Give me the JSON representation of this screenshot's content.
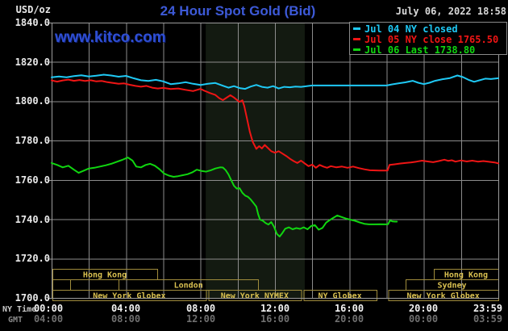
{
  "header": {
    "units": "USD/oz",
    "title": "24 Hour Spot Gold (Bid)",
    "datetime": "July 06, 2022 18:58",
    "watermark": "www.kitco.com"
  },
  "legend": [
    {
      "label": "Jul 04 NY closed",
      "color": "#1fc9f5"
    },
    {
      "label": "Jul 05 NY close 1765.50",
      "color": "#ef1515"
    },
    {
      "label": "Jul 06 Last 1738.80",
      "color": "#10d610"
    }
  ],
  "axis": {
    "ny_time_label": "NY Time",
    "gmt_label": "GMT",
    "ny_times": [
      "00:00",
      "04:00",
      "08:00",
      "12:00",
      "16:00",
      "20:00",
      "23:59"
    ],
    "gmt_times": [
      "04:00",
      "08:00",
      "12:00",
      "16:00",
      "20:00",
      "00:00",
      "03:59"
    ],
    "y_labels": [
      "1840.0",
      "1820.0",
      "1800.0",
      "1780.0",
      "1760.0",
      "1740.0",
      "1720.0",
      "1700.0"
    ]
  },
  "colors": {
    "background": "#000000",
    "grid": "#8c8c8c",
    "plot_border": "#9c9c9c",
    "session_text": "#d9c050",
    "session_border": "#a08c3c",
    "nymex_band": "#131a11",
    "title_blue": "#3d5ad8"
  },
  "chart_data": {
    "type": "line",
    "title": "24 Hour Spot Gold (Bid)",
    "xlabel": "NY Time",
    "ylabel": "USD/oz",
    "x_range_hours": [
      0,
      24
    ],
    "ylim": [
      1700,
      1840
    ],
    "y_tick_step": 20,
    "x_gridline_step_hours": 2,
    "legend_position": "top-right",
    "nymex_band_hours": [
      8.28,
      13.6
    ],
    "sessions": [
      {
        "row": 0,
        "label": "Hong Kong",
        "start": 0.05,
        "end": 5.67
      },
      {
        "row": 0,
        "label": "Hong Kong",
        "start": 20.53,
        "end": 24
      },
      {
        "row": 1,
        "label": "",
        "start": 0.05,
        "end": 1.0
      },
      {
        "row": 1,
        "label": "",
        "start": 1.0,
        "end": 3.6
      },
      {
        "row": 1,
        "label": "London",
        "start": 3.6,
        "end": 11.1
      },
      {
        "row": 1,
        "label": "Sydney",
        "start": 19.02,
        "end": 24
      },
      {
        "row": 2,
        "label": "New York Globex",
        "start": 0.05,
        "end": 8.3
      },
      {
        "row": 2,
        "label": "New York NYMEX",
        "start": 8.42,
        "end": 13.4
      },
      {
        "row": 2,
        "label": "NY Globex",
        "start": 13.53,
        "end": 17.45
      },
      {
        "row": 2,
        "label": "New York Globex",
        "start": 18.08,
        "end": 24
      }
    ],
    "series": [
      {
        "name": "Jul 04 NY closed",
        "color": "#1fc9f5",
        "points": [
          [
            0,
            1812.2
          ],
          [
            0.4,
            1812.6
          ],
          [
            0.8,
            1812.2
          ],
          [
            1.2,
            1812.8
          ],
          [
            1.6,
            1813.2
          ],
          [
            2,
            1812.6
          ],
          [
            2.4,
            1813
          ],
          [
            2.8,
            1813.5
          ],
          [
            3.2,
            1813.1
          ],
          [
            3.6,
            1812.5
          ],
          [
            4,
            1812.9
          ],
          [
            4.4,
            1811.7
          ],
          [
            4.8,
            1810.7
          ],
          [
            5.2,
            1810.3
          ],
          [
            5.6,
            1810.9
          ],
          [
            6,
            1810.1
          ],
          [
            6.4,
            1808.7
          ],
          [
            6.8,
            1809.1
          ],
          [
            7.2,
            1809.7
          ],
          [
            7.6,
            1808.9
          ],
          [
            8,
            1808.3
          ],
          [
            8.4,
            1808.9
          ],
          [
            8.8,
            1809.3
          ],
          [
            9.2,
            1807.9
          ],
          [
            9.5,
            1806.9
          ],
          [
            9.8,
            1807.7
          ],
          [
            10.1,
            1806.7
          ],
          [
            10.4,
            1806.3
          ],
          [
            10.7,
            1807.5
          ],
          [
            11,
            1808.3
          ],
          [
            11.3,
            1807.3
          ],
          [
            11.6,
            1806.9
          ],
          [
            11.9,
            1807.7
          ],
          [
            12.2,
            1806.5
          ],
          [
            12.5,
            1807.3
          ],
          [
            12.8,
            1807.1
          ],
          [
            13.1,
            1807.5
          ],
          [
            13.4,
            1807.3
          ],
          [
            13.7,
            1807.7
          ],
          [
            14,
            1808
          ],
          [
            15,
            1808
          ],
          [
            16,
            1808
          ],
          [
            17,
            1808
          ],
          [
            18,
            1808
          ],
          [
            18.3,
            1808.6
          ],
          [
            18.7,
            1809.2
          ],
          [
            19,
            1809.6
          ],
          [
            19.4,
            1810.4
          ],
          [
            19.7,
            1809.4
          ],
          [
            20,
            1808.7
          ],
          [
            20.3,
            1809.4
          ],
          [
            20.6,
            1810.4
          ],
          [
            21,
            1811.2
          ],
          [
            21.4,
            1811.8
          ],
          [
            21.8,
            1813.1
          ],
          [
            22.1,
            1812.3
          ],
          [
            22.4,
            1810.9
          ],
          [
            22.7,
            1809.9
          ],
          [
            23,
            1810.7
          ],
          [
            23.3,
            1811.5
          ],
          [
            23.6,
            1811.3
          ],
          [
            24,
            1811.7
          ]
        ]
      },
      {
        "name": "Jul 05 NY close 1765.50",
        "color": "#ef1515",
        "points": [
          [
            0,
            1810.6
          ],
          [
            0.3,
            1810
          ],
          [
            0.6,
            1810.6
          ],
          [
            0.9,
            1811
          ],
          [
            1.2,
            1810.4
          ],
          [
            1.5,
            1810.8
          ],
          [
            1.8,
            1810.3
          ],
          [
            2.1,
            1810.7
          ],
          [
            2.4,
            1810.1
          ],
          [
            2.7,
            1810.3
          ],
          [
            3,
            1809.7
          ],
          [
            3.3,
            1809.3
          ],
          [
            3.6,
            1808.9
          ],
          [
            3.9,
            1809.1
          ],
          [
            4.2,
            1808.4
          ],
          [
            4.5,
            1807.8
          ],
          [
            4.8,
            1807.4
          ],
          [
            5.1,
            1807.8
          ],
          [
            5.4,
            1806.9
          ],
          [
            5.7,
            1806.5
          ],
          [
            6,
            1806.8
          ],
          [
            6.4,
            1806.2
          ],
          [
            6.8,
            1806.5
          ],
          [
            7.2,
            1805.8
          ],
          [
            7.6,
            1805.2
          ],
          [
            8,
            1806.3
          ],
          [
            8.2,
            1805.4
          ],
          [
            8.5,
            1804.2
          ],
          [
            8.8,
            1803.2
          ],
          [
            9,
            1801.6
          ],
          [
            9.2,
            1800.6
          ],
          [
            9.4,
            1801.8
          ],
          [
            9.6,
            1803.1
          ],
          [
            9.8,
            1801.9
          ],
          [
            9.95,
            1800.7
          ],
          [
            10.1,
            1799.7
          ],
          [
            10.25,
            1800.5
          ],
          [
            10.35,
            1797.6
          ],
          [
            10.5,
            1791
          ],
          [
            10.65,
            1784.5
          ],
          [
            10.8,
            1779.5
          ],
          [
            11,
            1775.8
          ],
          [
            11.15,
            1777.2
          ],
          [
            11.3,
            1776
          ],
          [
            11.45,
            1777.8
          ],
          [
            11.6,
            1776.4
          ],
          [
            11.8,
            1774.6
          ],
          [
            12,
            1773.8
          ],
          [
            12.2,
            1774.6
          ],
          [
            12.4,
            1773.4
          ],
          [
            12.6,
            1772.2
          ],
          [
            12.8,
            1770.8
          ],
          [
            13,
            1769.6
          ],
          [
            13.2,
            1768.6
          ],
          [
            13.4,
            1769.8
          ],
          [
            13.6,
            1768.4
          ],
          [
            13.8,
            1767
          ],
          [
            14,
            1767.8
          ],
          [
            14.2,
            1766.2
          ],
          [
            14.4,
            1767.6
          ],
          [
            14.6,
            1766.8
          ],
          [
            14.8,
            1766.2
          ],
          [
            15,
            1767
          ],
          [
            15.3,
            1766.4
          ],
          [
            15.6,
            1766.8
          ],
          [
            15.9,
            1766.2
          ],
          [
            16.2,
            1766.8
          ],
          [
            16.5,
            1766
          ],
          [
            16.8,
            1765.4
          ],
          [
            17.1,
            1764.9
          ],
          [
            17.6,
            1764.8
          ],
          [
            18.05,
            1764.8
          ],
          [
            18.15,
            1767.6
          ],
          [
            18.4,
            1767.9
          ],
          [
            18.7,
            1768.3
          ],
          [
            19,
            1768.6
          ],
          [
            19.3,
            1768.9
          ],
          [
            19.6,
            1769.3
          ],
          [
            19.9,
            1769.8
          ],
          [
            20.2,
            1769.4
          ],
          [
            20.5,
            1769
          ],
          [
            20.8,
            1769.6
          ],
          [
            21.1,
            1770.3
          ],
          [
            21.3,
            1769.7
          ],
          [
            21.5,
            1770
          ],
          [
            21.7,
            1769.3
          ],
          [
            22,
            1769.9
          ],
          [
            22.3,
            1769.4
          ],
          [
            22.6,
            1769.8
          ],
          [
            22.9,
            1769.3
          ],
          [
            23.2,
            1769.6
          ],
          [
            23.5,
            1769.2
          ],
          [
            23.8,
            1768.9
          ],
          [
            24,
            1768.4
          ]
        ]
      },
      {
        "name": "Jul 06 Last 1738.80",
        "color": "#10d610",
        "points": [
          [
            0,
            1768.6
          ],
          [
            0.3,
            1767.6
          ],
          [
            0.6,
            1766.4
          ],
          [
            0.9,
            1767.2
          ],
          [
            1.2,
            1765.2
          ],
          [
            1.45,
            1763.6
          ],
          [
            1.7,
            1764.6
          ],
          [
            2,
            1765.8
          ],
          [
            2.3,
            1766.2
          ],
          [
            2.6,
            1766.8
          ],
          [
            2.9,
            1767.4
          ],
          [
            3.2,
            1768.2
          ],
          [
            3.5,
            1769.2
          ],
          [
            3.8,
            1770.2
          ],
          [
            4.1,
            1771.4
          ],
          [
            4.35,
            1769.8
          ],
          [
            4.55,
            1766.8
          ],
          [
            4.8,
            1766.4
          ],
          [
            5.05,
            1767.6
          ],
          [
            5.3,
            1768.2
          ],
          [
            5.55,
            1767.2
          ],
          [
            5.8,
            1765.4
          ],
          [
            6.05,
            1763.2
          ],
          [
            6.3,
            1762.2
          ],
          [
            6.55,
            1761.6
          ],
          [
            6.8,
            1761.9
          ],
          [
            7.05,
            1762.4
          ],
          [
            7.3,
            1762.9
          ],
          [
            7.55,
            1763.8
          ],
          [
            7.8,
            1765.2
          ],
          [
            8.05,
            1764.6
          ],
          [
            8.3,
            1764.2
          ],
          [
            8.55,
            1764.9
          ],
          [
            8.8,
            1765.8
          ],
          [
            9.05,
            1766.4
          ],
          [
            9.2,
            1766.3
          ],
          [
            9.35,
            1765
          ],
          [
            9.5,
            1762.8
          ],
          [
            9.65,
            1759.8
          ],
          [
            9.8,
            1757
          ],
          [
            9.95,
            1755.6
          ],
          [
            10.1,
            1755.8
          ],
          [
            10.25,
            1753.4
          ],
          [
            10.4,
            1752
          ],
          [
            10.55,
            1751.4
          ],
          [
            10.7,
            1750
          ],
          [
            10.85,
            1748.2
          ],
          [
            11,
            1746.4
          ],
          [
            11.1,
            1742.5
          ],
          [
            11.2,
            1739.8
          ],
          [
            11.35,
            1739.2
          ],
          [
            11.5,
            1738
          ],
          [
            11.65,
            1737.3
          ],
          [
            11.8,
            1738.6
          ],
          [
            11.95,
            1736.2
          ],
          [
            12.1,
            1732.6
          ],
          [
            12.25,
            1731.2
          ],
          [
            12.4,
            1733
          ],
          [
            12.55,
            1735.2
          ],
          [
            12.75,
            1735.9
          ],
          [
            12.95,
            1734.9
          ],
          [
            13.15,
            1735.5
          ],
          [
            13.35,
            1735.1
          ],
          [
            13.55,
            1735.9
          ],
          [
            13.75,
            1734.9
          ],
          [
            13.95,
            1736.6
          ],
          [
            14.15,
            1737
          ],
          [
            14.35,
            1734.7
          ],
          [
            14.55,
            1735.6
          ],
          [
            14.75,
            1738.3
          ],
          [
            14.95,
            1739.6
          ],
          [
            15.15,
            1740.8
          ],
          [
            15.35,
            1741.9
          ],
          [
            15.55,
            1741.2
          ],
          [
            15.8,
            1740.4
          ],
          [
            16.05,
            1739.8
          ],
          [
            16.3,
            1739.2
          ],
          [
            16.55,
            1738.4
          ],
          [
            16.8,
            1737.7
          ],
          [
            17.05,
            1737.4
          ],
          [
            17.35,
            1737.4
          ],
          [
            17.65,
            1737.5
          ],
          [
            17.95,
            1737.4
          ],
          [
            18.08,
            1737.5
          ],
          [
            18.18,
            1739.4
          ],
          [
            18.32,
            1738.9
          ],
          [
            18.45,
            1738.8
          ],
          [
            18.55,
            1738.8
          ]
        ]
      }
    ]
  }
}
